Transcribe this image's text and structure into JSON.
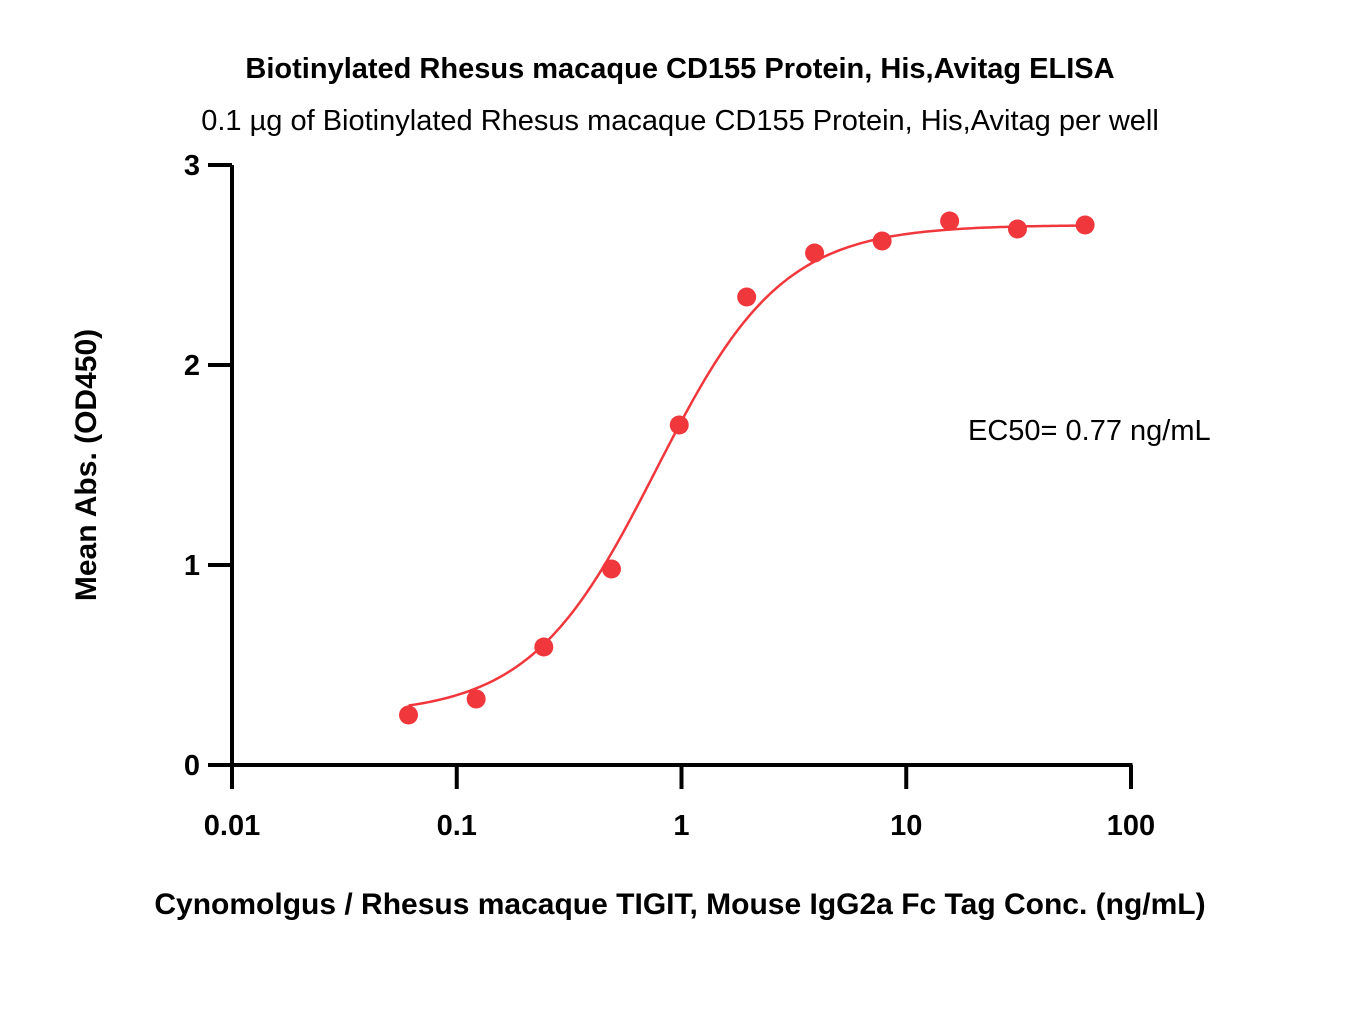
{
  "chart_data": {
    "type": "scatter",
    "title": "Biotinylated Rhesus macaque CD155 Protein, His,Avitag ELISA",
    "subtitle": "0.1 µg of Biotinylated Rhesus macaque CD155 Protein, His,Avitag per well",
    "xlabel": "Cynomolgus / Rhesus macaque TIGIT, Mouse IgG2a Fc Tag Conc. (ng/mL)",
    "ylabel": "Mean Abs. (OD450)",
    "x_scale": "log",
    "xlim": [
      0.01,
      100
    ],
    "ylim": [
      0,
      3
    ],
    "x_ticks": [
      0.01,
      0.1,
      1,
      10,
      100
    ],
    "x_tick_labels": [
      "0.01",
      "0.1",
      "1",
      "10",
      "100"
    ],
    "y_ticks": [
      0,
      1,
      2,
      3
    ],
    "y_tick_labels": [
      "0",
      "1",
      "2",
      "3"
    ],
    "grid": false,
    "annotation": "EC50= 0.77 ng/mL",
    "series": [
      {
        "color": "#f0373c",
        "x": [
          0.061,
          0.122,
          0.244,
          0.488,
          0.977,
          1.95,
          3.91,
          7.81,
          15.6,
          31.25,
          62.5
        ],
        "y": [
          0.25,
          0.33,
          0.59,
          0.98,
          1.7,
          2.34,
          2.56,
          2.62,
          2.72,
          2.68,
          2.7
        ],
        "fit": {
          "model": "4PL",
          "bottom": 0.25,
          "top": 2.7,
          "ec50": 0.77,
          "hill": 1.55
        }
      }
    ]
  }
}
